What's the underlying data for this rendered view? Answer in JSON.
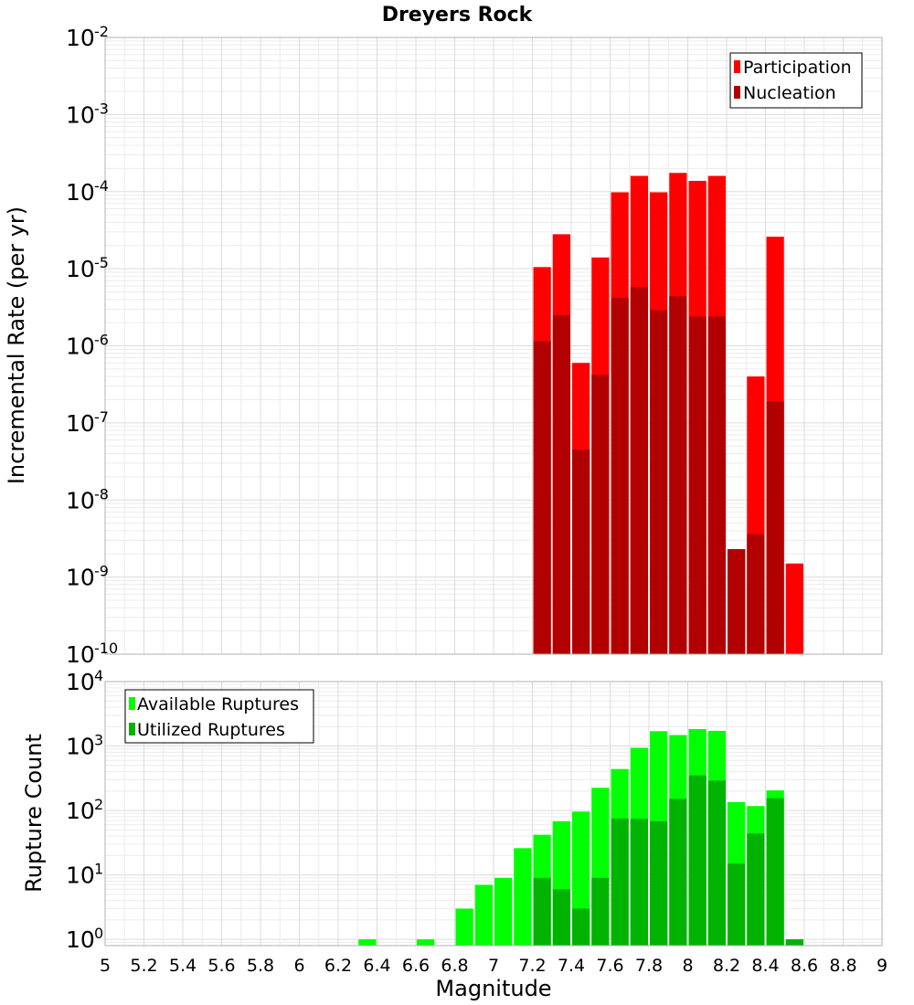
{
  "chart_data": [
    {
      "type": "bar",
      "title": "Dreyers Rock",
      "xlabel": "Magnitude",
      "ylabel": "Incremental Rate (per yr)",
      "yscale": "log",
      "ylim": [
        1e-10,
        0.01
      ],
      "y_ticks": [
        {
          "base": "10",
          "exp": "-10"
        },
        {
          "base": "10",
          "exp": "-9"
        },
        {
          "base": "10",
          "exp": "-8"
        },
        {
          "base": "10",
          "exp": "-7"
        },
        {
          "base": "10",
          "exp": "-6"
        },
        {
          "base": "10",
          "exp": "-5"
        },
        {
          "base": "10",
          "exp": "-4"
        },
        {
          "base": "10",
          "exp": "-3"
        },
        {
          "base": "10",
          "exp": "-2"
        }
      ],
      "xlim": [
        5,
        9
      ],
      "legend_position": "top-right",
      "x": [
        7.25,
        7.35,
        7.45,
        7.55,
        7.65,
        7.75,
        7.85,
        7.95,
        8.05,
        8.15,
        8.25,
        8.35,
        8.45,
        8.55
      ],
      "series": [
        {
          "name": "Participation",
          "color": "#ff0000",
          "values": [
            1.05e-05,
            2.8e-05,
            6e-07,
            1.4e-05,
            9.8e-05,
            0.00016,
            9.8e-05,
            0.000175,
            0.000138,
            0.00016,
            2.3e-09,
            4e-07,
            2.6e-05,
            1.5e-09
          ]
        },
        {
          "name": "Nucleation",
          "color": "#b20000",
          "values": [
            1.15e-06,
            2.5e-06,
            4.5e-08,
            4.2e-07,
            4.2e-06,
            5.8e-06,
            2.9e-06,
            4.4e-06,
            2.4e-06,
            2.4e-06,
            2.3e-09,
            3.6e-09,
            1.9e-07,
            null
          ]
        }
      ]
    },
    {
      "type": "bar",
      "xlabel": "Magnitude",
      "ylabel": "Rupture Count",
      "yscale": "log",
      "ylim": [
        0.8,
        10000
      ],
      "y_ticks": [
        {
          "base": "10",
          "exp": "0"
        },
        {
          "base": "10",
          "exp": "1"
        },
        {
          "base": "10",
          "exp": "2"
        },
        {
          "base": "10",
          "exp": "3"
        },
        {
          "base": "10",
          "exp": "4"
        }
      ],
      "xlim": [
        5,
        9
      ],
      "x_ticks": [
        "5",
        "5.2",
        "5.4",
        "5.6",
        "5.8",
        "6",
        "6.2",
        "6.4",
        "6.6",
        "6.8",
        "7",
        "7.2",
        "7.4",
        "7.6",
        "7.8",
        "8",
        "8.2",
        "8.4",
        "8.6",
        "8.8",
        "9"
      ],
      "legend_position": "top-left",
      "x": [
        6.35,
        6.65,
        6.85,
        6.95,
        7.05,
        7.15,
        7.25,
        7.35,
        7.45,
        7.55,
        7.65,
        7.75,
        7.85,
        7.95,
        8.05,
        8.15,
        8.25,
        8.35,
        8.45,
        8.55
      ],
      "series": [
        {
          "name": "Available Ruptures",
          "color": "#00ff00",
          "values": [
            1,
            1,
            3,
            7,
            9,
            26,
            42,
            68,
            96,
            225,
            440,
            940,
            1700,
            1480,
            1830,
            1720,
            135,
            117,
            205,
            1
          ]
        },
        {
          "name": "Utilized Ruptures",
          "color": "#00b300",
          "values": [
            null,
            null,
            null,
            null,
            null,
            null,
            9,
            6,
            3,
            9,
            75,
            74,
            68,
            152,
            350,
            290,
            15,
            44,
            155,
            1
          ]
        }
      ]
    }
  ]
}
